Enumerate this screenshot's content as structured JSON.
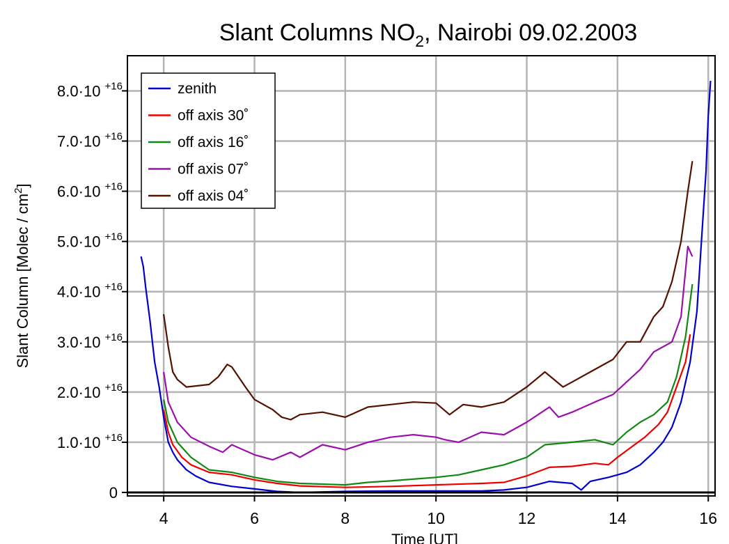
{
  "chart_data": {
    "type": "line",
    "title": {
      "parts": [
        "Slant Columns NO",
        "2",
        ", Nairobi 09.02.2003"
      ]
    },
    "ylabel": {
      "parts": [
        "Slant Column [Molec / cm",
        "2",
        "]"
      ]
    },
    "xlabel": "Time [UT]",
    "xlim": [
      3.2,
      16.15
    ],
    "xticks": [
      4,
      6,
      8,
      10,
      12,
      14,
      16
    ],
    "ylim": [
      -700000000000000.0,
      8.7e+16
    ],
    "yticks": [
      0,
      {
        "value": 1e+16,
        "label": "1.0·10 +16"
      },
      {
        "value": 2e+16,
        "label": "2.0·10 +16"
      },
      {
        "value": 3e+16,
        "label": "3.0·10 +16"
      },
      {
        "value": 4e+16,
        "label": "4.0·10 +16"
      },
      {
        "value": 5e+16,
        "label": "5.0·10 +16"
      },
      {
        "value": 6e+16,
        "label": "6.0·10 +16"
      },
      {
        "value": 7e+16,
        "label": "7.0·10 +16"
      },
      {
        "value": 8e+16,
        "label": "8.0·10 +16"
      }
    ],
    "grid": true,
    "legend": "upper left",
    "series": [
      {
        "name": "zenith",
        "color": "#0000cc",
        "x": [
          3.5,
          3.55,
          3.6,
          3.7,
          3.8,
          3.9,
          4.0,
          4.1,
          4.2,
          4.3,
          4.5,
          4.7,
          5.0,
          5.5,
          6,
          6.5,
          7,
          8,
          9,
          10,
          11,
          11.5,
          12,
          12.5,
          13,
          13.2,
          13.4,
          13.8,
          14.2,
          14.5,
          14.8,
          15,
          15.2,
          15.4,
          15.6,
          15.75,
          15.85,
          15.95,
          16.0,
          16.05
        ],
        "values": [
          4.7e+16,
          4.5e+16,
          4.1e+16,
          3.4e+16,
          2.6e+16,
          2.1e+16,
          1.5e+16,
          1e+16,
          8000000000000000.0,
          6500000000000000.0,
          4500000000000000.0,
          3300000000000000.0,
          2000000000000000.0,
          1200000000000000.0,
          700000000000000.0,
          200000000000000.0,
          0,
          200000000000000.0,
          300000000000000.0,
          300000000000000.0,
          300000000000000.0,
          500000000000000.0,
          1000000000000000.0,
          2200000000000000.0,
          1800000000000000.0,
          500000000000000.0,
          2200000000000000.0,
          3000000000000000.0,
          4000000000000000.0,
          5500000000000000.0,
          8000000000000000.0,
          1e+16,
          1.3e+16,
          1.8e+16,
          2.6e+16,
          3.6e+16,
          5e+16,
          6.4e+16,
          7.5e+16,
          8.2e+16
        ]
      },
      {
        "name": "off axis 30˚",
        "color": "#ee0000",
        "x": [
          4.0,
          4.1,
          4.2,
          4.4,
          4.6,
          5,
          5.5,
          6,
          6.5,
          7,
          8,
          9,
          10,
          11,
          11.5,
          12,
          12.5,
          13,
          13.5,
          13.8,
          14,
          14.3,
          14.6,
          14.9,
          15.1,
          15.3,
          15.5,
          15.6
        ],
        "values": [
          1.65e+16,
          1.2e+16,
          9500000000000000.0,
          7000000000000000.0,
          5500000000000000.0,
          4000000000000000.0,
          3500000000000000.0,
          2500000000000000.0,
          1800000000000000.0,
          1300000000000000.0,
          1000000000000000.0,
          1200000000000000.0,
          1500000000000000.0,
          1800000000000000.0,
          2000000000000000.0,
          3300000000000000.0,
          5000000000000000.0,
          5200000000000000.0,
          5800000000000000.0,
          5500000000000000.0,
          7000000000000000.0,
          9000000000000000.0,
          1.1e+16,
          1.35e+16,
          1.6e+16,
          2.1e+16,
          2.6e+16,
          3.15e+16
        ]
      },
      {
        "name": "off axis 16˚",
        "color": "#118811",
        "x": [
          4.0,
          4.1,
          4.3,
          4.6,
          5,
          5.5,
          6,
          6.5,
          7,
          8,
          8.5,
          9,
          10,
          10.5,
          11,
          11.5,
          12,
          12.4,
          13,
          13.5,
          13.9,
          14.2,
          14.5,
          14.8,
          15.1,
          15.3,
          15.5,
          15.65
        ],
        "values": [
          1.85e+16,
          1.4e+16,
          1e+16,
          7000000000000000.0,
          4500000000000000.0,
          4000000000000000.0,
          3000000000000000.0,
          2200000000000000.0,
          1800000000000000.0,
          1500000000000000.0,
          2000000000000000.0,
          2300000000000000.0,
          3000000000000000.0,
          3500000000000000.0,
          4500000000000000.0,
          5500000000000000.0,
          7000000000000000.0,
          9500000000000000.0,
          1e+16,
          1.05e+16,
          9500000000000000.0,
          1.2e+16,
          1.4e+16,
          1.55e+16,
          1.8e+16,
          2.3e+16,
          3.1e+16,
          4.15e+16
        ]
      },
      {
        "name": "off axis 07˚",
        "color": "#9911aa",
        "x": [
          4.0,
          4.1,
          4.3,
          4.6,
          5,
          5.3,
          5.5,
          6,
          6.4,
          6.8,
          7,
          7.5,
          8,
          8.5,
          9,
          9.5,
          10,
          10.2,
          10.5,
          11,
          11.5,
          12,
          12.5,
          12.7,
          13,
          13.5,
          13.9,
          14.2,
          14.5,
          14.8,
          15,
          15.2,
          15.4,
          15.55,
          15.65
        ],
        "values": [
          2.4e+16,
          1.8e+16,
          1.4e+16,
          1.1e+16,
          9200000000000000.0,
          8000000000000000.0,
          9500000000000000.0,
          7500000000000000.0,
          6500000000000000.0,
          8000000000000000.0,
          7000000000000000.0,
          9500000000000000.0,
          8500000000000000.0,
          1e+16,
          1.1e+16,
          1.15e+16,
          1.1e+16,
          1.05e+16,
          1e+16,
          1.2e+16,
          1.15e+16,
          1.4e+16,
          1.7e+16,
          1.5e+16,
          1.6e+16,
          1.8e+16,
          1.95e+16,
          2.2e+16,
          2.45e+16,
          2.8e+16,
          2.9e+16,
          3e+16,
          3.5e+16,
          4.9e+16,
          4.7e+16
        ]
      },
      {
        "name": "off axis 04˚",
        "color": "#551100",
        "x": [
          4.0,
          4.1,
          4.2,
          4.3,
          4.5,
          5,
          5.2,
          5.4,
          5.5,
          5.8,
          6,
          6.4,
          6.6,
          6.8,
          7,
          7.5,
          8,
          8.5,
          9,
          9.5,
          10,
          10.3,
          10.6,
          11,
          11.5,
          12,
          12.4,
          12.8,
          13,
          13.5,
          13.9,
          14.2,
          14.5,
          14.8,
          15,
          15.2,
          15.4,
          15.55,
          15.65
        ],
        "values": [
          3.55e+16,
          2.9e+16,
          2.4e+16,
          2.25e+16,
          2.1e+16,
          2.15e+16,
          2.3e+16,
          2.55e+16,
          2.5e+16,
          2.1e+16,
          1.85e+16,
          1.65e+16,
          1.5e+16,
          1.45e+16,
          1.55e+16,
          1.6e+16,
          1.5e+16,
          1.7e+16,
          1.75e+16,
          1.8e+16,
          1.78e+16,
          1.55e+16,
          1.75e+16,
          1.7e+16,
          1.8e+16,
          2.1e+16,
          2.4e+16,
          2.1e+16,
          2.2e+16,
          2.45e+16,
          2.65e+16,
          3e+16,
          3e+16,
          3.5e+16,
          3.7e+16,
          4.2e+16,
          5e+16,
          6e+16,
          6.6e+16
        ]
      }
    ]
  }
}
